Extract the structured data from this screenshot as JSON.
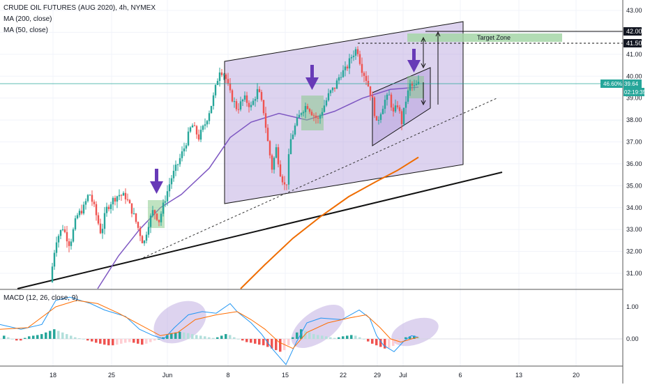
{
  "header": {
    "symbol": "CRUDE OIL FUTURES (AUG 2020), 4h, NYMEX",
    "ma200": "MA (200, close)",
    "ma50": "MA (50, close)",
    "macd": "MACD (12, 26, close, 9)"
  },
  "annotations": {
    "target_zone": "Target Zone"
  },
  "price_badges": {
    "level_upper": "42.00",
    "level_lower": "41.50",
    "change": "46.60%",
    "last_price": "39.64",
    "countdown": "02:19:35"
  },
  "colors": {
    "up": "#26a69a",
    "down": "#ef5350",
    "ma50": "#7e57c2",
    "ma200": "#ef6c00",
    "channel_fill": "#b39ddb",
    "arrow": "#673ab7",
    "zone_fill": "#81c784",
    "macd_line": "#2196f3",
    "signal_line": "#ff6d00"
  },
  "chart_data": [
    {
      "type": "candlestick",
      "title": "CRUDE OIL FUTURES (AUG 2020), 4h, NYMEX",
      "y_axis_ticks": [
        "31.00",
        "32.00",
        "33.00",
        "34.00",
        "35.00",
        "36.00",
        "37.00",
        "38.00",
        "39.00",
        "40.00",
        "41.00",
        "42.00",
        "43.00"
      ],
      "x_axis_ticks": [
        "18",
        "25",
        "Jun",
        "8",
        "15",
        "22",
        "29",
        "Jul",
        "6",
        "13",
        "20"
      ],
      "ylim": [
        30.3,
        43.2
      ],
      "last_price": 39.64,
      "horizontal_levels": [
        42.0,
        41.5
      ],
      "close_path": [
        {
          "x": 72,
          "y": 30.6
        },
        {
          "x": 80,
          "y": 32.5
        },
        {
          "x": 90,
          "y": 33.1
        },
        {
          "x": 100,
          "y": 32.3
        },
        {
          "x": 110,
          "y": 33.6
        },
        {
          "x": 120,
          "y": 34.0
        },
        {
          "x": 128,
          "y": 34.7
        },
        {
          "x": 136,
          "y": 33.9
        },
        {
          "x": 145,
          "y": 32.8
        },
        {
          "x": 152,
          "y": 33.9
        },
        {
          "x": 160,
          "y": 34.3
        },
        {
          "x": 170,
          "y": 34.6
        },
        {
          "x": 180,
          "y": 34.5
        },
        {
          "x": 190,
          "y": 33.8
        },
        {
          "x": 200,
          "y": 32.9
        },
        {
          "x": 206,
          "y": 32.3
        },
        {
          "x": 212,
          "y": 33.2
        },
        {
          "x": 220,
          "y": 33.9
        },
        {
          "x": 228,
          "y": 33.4
        },
        {
          "x": 235,
          "y": 34.2
        },
        {
          "x": 245,
          "y": 35.3
        },
        {
          "x": 255,
          "y": 36.0
        },
        {
          "x": 265,
          "y": 36.8
        },
        {
          "x": 275,
          "y": 37.8
        },
        {
          "x": 285,
          "y": 37.2
        },
        {
          "x": 295,
          "y": 37.9
        },
        {
          "x": 305,
          "y": 38.9
        },
        {
          "x": 315,
          "y": 40.3
        },
        {
          "x": 322,
          "y": 40.1
        },
        {
          "x": 330,
          "y": 39.2
        },
        {
          "x": 340,
          "y": 38.5
        },
        {
          "x": 350,
          "y": 39.0
        },
        {
          "x": 360,
          "y": 38.6
        },
        {
          "x": 370,
          "y": 39.4
        },
        {
          "x": 378,
          "y": 38.4
        },
        {
          "x": 384,
          "y": 37.0
        },
        {
          "x": 390,
          "y": 35.8
        },
        {
          "x": 396,
          "y": 36.7
        },
        {
          "x": 402,
          "y": 35.6
        },
        {
          "x": 410,
          "y": 34.8
        },
        {
          "x": 416,
          "y": 37.0
        },
        {
          "x": 424,
          "y": 37.8
        },
        {
          "x": 432,
          "y": 38.4
        },
        {
          "x": 440,
          "y": 38.7
        },
        {
          "x": 448,
          "y": 38.3
        },
        {
          "x": 456,
          "y": 38.0
        },
        {
          "x": 464,
          "y": 38.6
        },
        {
          "x": 472,
          "y": 39.2
        },
        {
          "x": 480,
          "y": 39.5
        },
        {
          "x": 488,
          "y": 40.1
        },
        {
          "x": 496,
          "y": 40.3
        },
        {
          "x": 504,
          "y": 40.9
        },
        {
          "x": 512,
          "y": 41.3
        },
        {
          "x": 518,
          "y": 40.4
        },
        {
          "x": 526,
          "y": 39.8
        },
        {
          "x": 534,
          "y": 38.9
        },
        {
          "x": 540,
          "y": 37.8
        },
        {
          "x": 546,
          "y": 38.4
        },
        {
          "x": 552,
          "y": 38.9
        },
        {
          "x": 558,
          "y": 39.1
        },
        {
          "x": 564,
          "y": 38.3
        },
        {
          "x": 570,
          "y": 38.7
        },
        {
          "x": 576,
          "y": 37.9
        },
        {
          "x": 582,
          "y": 38.9
        },
        {
          "x": 588,
          "y": 39.6
        },
        {
          "x": 594,
          "y": 39.5
        },
        {
          "x": 600,
          "y": 39.64
        }
      ],
      "series": [
        {
          "name": "MA (50, close)",
          "color": "#7e57c2",
          "points": [
            [
              140,
              30.3
            ],
            [
              170,
              31.8
            ],
            [
              200,
              33.0
            ],
            [
              230,
              34.0
            ],
            [
              260,
              34.6
            ],
            [
              300,
              35.8
            ],
            [
              330,
              37.2
            ],
            [
              360,
              37.9
            ],
            [
              400,
              38.3
            ],
            [
              440,
              38.0
            ],
            [
              480,
              38.4
            ],
            [
              520,
              39.0
            ],
            [
              560,
              39.4
            ],
            [
              600,
              39.5
            ]
          ]
        },
        {
          "name": "MA (200, close)",
          "color": "#ef6c00",
          "points": [
            [
              345,
              30.3
            ],
            [
              380,
              31.4
            ],
            [
              420,
              32.6
            ],
            [
              460,
              33.6
            ],
            [
              500,
              34.5
            ],
            [
              540,
              35.2
            ],
            [
              570,
              35.7
            ],
            [
              600,
              36.3
            ]
          ]
        }
      ]
    },
    {
      "type": "macd",
      "title": "MACD (12, 26, close, 9)",
      "y_axis_ticks": [
        "1.00",
        "0.00"
      ],
      "ylim": [
        -0.9,
        1.45
      ],
      "macd": [
        [
          0,
          0.45
        ],
        [
          30,
          0.3
        ],
        [
          60,
          0.45
        ],
        [
          80,
          1.2
        ],
        [
          100,
          1.3
        ],
        [
          130,
          1.1
        ],
        [
          150,
          0.9
        ],
        [
          180,
          0.7
        ],
        [
          200,
          0.3
        ],
        [
          220,
          0.1
        ],
        [
          235,
          0.0
        ],
        [
          250,
          0.35
        ],
        [
          270,
          0.75
        ],
        [
          290,
          0.85
        ],
        [
          310,
          0.8
        ],
        [
          330,
          1.1
        ],
        [
          340,
          0.85
        ],
        [
          360,
          0.5
        ],
        [
          375,
          0.15
        ],
        [
          390,
          -0.3
        ],
        [
          400,
          -0.55
        ],
        [
          410,
          -0.8
        ],
        [
          425,
          -0.1
        ],
        [
          440,
          0.5
        ],
        [
          460,
          0.65
        ],
        [
          490,
          0.6
        ],
        [
          515,
          0.9
        ],
        [
          530,
          0.65
        ],
        [
          540,
          0.1
        ],
        [
          550,
          -0.2
        ],
        [
          565,
          -0.4
        ],
        [
          580,
          -0.05
        ],
        [
          590,
          0.1
        ],
        [
          600,
          0.05
        ]
      ],
      "signal": [
        [
          0,
          0.3
        ],
        [
          40,
          0.35
        ],
        [
          80,
          1.0
        ],
        [
          110,
          1.2
        ],
        [
          140,
          1.1
        ],
        [
          170,
          0.8
        ],
        [
          200,
          0.45
        ],
        [
          230,
          0.1
        ],
        [
          255,
          0.2
        ],
        [
          280,
          0.6
        ],
        [
          310,
          0.75
        ],
        [
          340,
          0.85
        ],
        [
          360,
          0.6
        ],
        [
          380,
          0.3
        ],
        [
          400,
          -0.1
        ],
        [
          420,
          -0.3
        ],
        [
          440,
          0.2
        ],
        [
          470,
          0.5
        ],
        [
          500,
          0.65
        ],
        [
          525,
          0.75
        ],
        [
          545,
          0.35
        ],
        [
          560,
          0.0
        ],
        [
          575,
          -0.1
        ],
        [
          590,
          0.0
        ],
        [
          600,
          0.05
        ]
      ],
      "histogram": [
        [
          6,
          0.1
        ],
        [
          12,
          0.05
        ],
        [
          18,
          0.0
        ],
        [
          24,
          -0.05
        ],
        [
          30,
          -0.05
        ],
        [
          36,
          0.03
        ],
        [
          42,
          0.08
        ],
        [
          48,
          0.1
        ],
        [
          54,
          0.12
        ],
        [
          60,
          0.15
        ],
        [
          66,
          0.2
        ],
        [
          72,
          0.25
        ],
        [
          78,
          0.3
        ],
        [
          84,
          0.25
        ],
        [
          90,
          0.2
        ],
        [
          96,
          0.15
        ],
        [
          102,
          0.1
        ],
        [
          108,
          0.05
        ],
        [
          114,
          0.02
        ],
        [
          120,
          0.0
        ],
        [
          126,
          -0.05
        ],
        [
          132,
          -0.08
        ],
        [
          138,
          -0.12
        ],
        [
          144,
          -0.15
        ],
        [
          150,
          -0.18
        ],
        [
          156,
          -0.2
        ],
        [
          162,
          -0.2
        ],
        [
          168,
          -0.18
        ],
        [
          174,
          -0.15
        ],
        [
          180,
          -0.12
        ],
        [
          186,
          -0.1
        ],
        [
          192,
          -0.12
        ],
        [
          198,
          -0.15
        ],
        [
          204,
          -0.18
        ],
        [
          210,
          -0.15
        ],
        [
          216,
          -0.1
        ],
        [
          222,
          -0.05
        ],
        [
          228,
          0.0
        ],
        [
          234,
          0.05
        ],
        [
          240,
          0.12
        ],
        [
          246,
          0.18
        ],
        [
          252,
          0.2
        ],
        [
          258,
          0.22
        ],
        [
          264,
          0.2
        ],
        [
          270,
          0.18
        ],
        [
          276,
          0.15
        ],
        [
          282,
          0.12
        ],
        [
          288,
          0.1
        ],
        [
          294,
          0.08
        ],
        [
          300,
          0.05
        ],
        [
          306,
          0.03
        ],
        [
          312,
          0.05
        ],
        [
          318,
          0.1
        ],
        [
          324,
          0.15
        ],
        [
          330,
          0.12
        ],
        [
          336,
          0.05
        ],
        [
          342,
          0.0
        ],
        [
          348,
          -0.05
        ],
        [
          354,
          -0.1
        ],
        [
          360,
          -0.12
        ],
        [
          366,
          -0.15
        ],
        [
          372,
          -0.18
        ],
        [
          378,
          -0.2
        ],
        [
          384,
          -0.25
        ],
        [
          390,
          -0.3
        ],
        [
          396,
          -0.35
        ],
        [
          402,
          -0.4
        ],
        [
          408,
          -0.35
        ],
        [
          414,
          -0.2
        ],
        [
          420,
          0.05
        ],
        [
          426,
          0.2
        ],
        [
          432,
          0.3
        ],
        [
          438,
          0.25
        ],
        [
          444,
          0.2
        ],
        [
          450,
          0.15
        ],
        [
          456,
          0.12
        ],
        [
          462,
          0.1
        ],
        [
          468,
          0.08
        ],
        [
          474,
          0.05
        ],
        [
          480,
          0.03
        ],
        [
          486,
          0.05
        ],
        [
          492,
          0.08
        ],
        [
          498,
          0.1
        ],
        [
          504,
          0.12
        ],
        [
          510,
          0.1
        ],
        [
          516,
          0.05
        ],
        [
          522,
          0.0
        ],
        [
          528,
          -0.08
        ],
        [
          534,
          -0.15
        ],
        [
          540,
          -0.2
        ],
        [
          546,
          -0.25
        ],
        [
          552,
          -0.3
        ],
        [
          558,
          -0.28
        ],
        [
          564,
          -0.22
        ],
        [
          570,
          -0.15
        ],
        [
          576,
          -0.05
        ],
        [
          582,
          0.05
        ],
        [
          588,
          0.08
        ],
        [
          594,
          0.1
        ],
        [
          600,
          0.05
        ]
      ]
    }
  ]
}
